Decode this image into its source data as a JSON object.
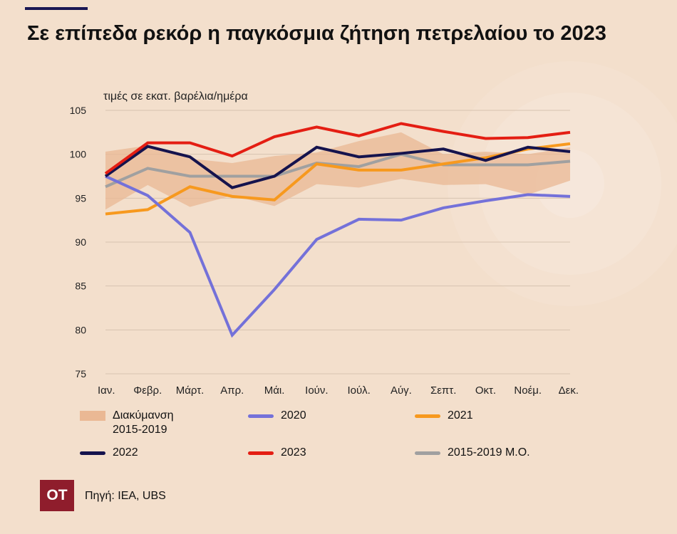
{
  "header": {
    "title": "Σε επίπεδα ρεκόρ η παγκόσμια ζήτηση πετρελαίου το 2023",
    "unit": "τιμές σε εκατ. βαρέλια/ημέρα"
  },
  "footer": {
    "logo": "OT",
    "source": "Πηγή: IEA, UBS"
  },
  "chart_data": {
    "type": "line",
    "title": "Σε επίπεδα ρεκόρ η παγκόσμια ζήτηση πετρελαίου το 2023",
    "ylabel": "τιμές σε εκατ. βαρέλια/ημέρα",
    "xlabel": "",
    "ylim": [
      75,
      105
    ],
    "yticks": [
      75,
      80,
      85,
      90,
      95,
      100,
      105
    ],
    "grid": true,
    "categories": [
      "Ιαν.",
      "Φεβρ.",
      "Μάρτ.",
      "Απρ.",
      "Μάι.",
      "Ιούν.",
      "Ιούλ.",
      "Αύγ.",
      "Σεπτ.",
      "Οκτ.",
      "Νοέμ.",
      "Δεκ."
    ],
    "band": {
      "name": "Διακύμανση 2015-2019",
      "color": "#eab894",
      "upper": [
        100.3,
        101.0,
        99.5,
        99.0,
        99.8,
        100.2,
        101.5,
        102.5,
        100.0,
        100.3,
        100.0,
        100.8
      ],
      "lower": [
        93.7,
        96.5,
        94.0,
        95.3,
        94.1,
        96.6,
        96.2,
        97.2,
        96.5,
        96.6,
        95.4,
        97.0
      ]
    },
    "series": [
      {
        "name": "2020",
        "color": "#7471d9",
        "values": [
          97.5,
          95.3,
          91.1,
          79.4,
          84.6,
          90.3,
          92.6,
          92.5,
          93.9,
          94.7,
          95.4,
          95.2
        ]
      },
      {
        "name": "2021",
        "color": "#f7991e",
        "values": [
          93.2,
          93.7,
          96.3,
          95.2,
          94.8,
          98.9,
          98.2,
          98.2,
          98.9,
          99.6,
          100.6,
          101.2
        ]
      },
      {
        "name": "2022",
        "color": "#15134d",
        "values": [
          97.5,
          100.9,
          99.7,
          96.2,
          97.5,
          100.8,
          99.7,
          100.1,
          100.6,
          99.3,
          100.8,
          100.3
        ]
      },
      {
        "name": "2023",
        "color": "#e41e13",
        "values": [
          97.8,
          101.3,
          101.3,
          99.8,
          102.0,
          103.1,
          102.1,
          103.5,
          102.6,
          101.8,
          101.9,
          102.5
        ]
      },
      {
        "name": "2015-2019 Μ.Ο.",
        "color": "#a0a0a0",
        "values": [
          96.3,
          98.4,
          97.5,
          97.5,
          97.5,
          99.0,
          98.6,
          100.0,
          98.8,
          98.8,
          98.8,
          99.2
        ]
      }
    ],
    "legend": [
      {
        "label": "Διακύμανση 2015-2019",
        "kind": "band",
        "color": "#eab894"
      },
      {
        "label": "2020",
        "kind": "line",
        "color": "#7471d9"
      },
      {
        "label": "2021",
        "kind": "line",
        "color": "#f7991e"
      },
      {
        "label": "2022",
        "kind": "line",
        "color": "#15134d"
      },
      {
        "label": "2023",
        "kind": "line",
        "color": "#e41e13"
      },
      {
        "label": "2015-2019 Μ.Ο.",
        "kind": "line",
        "color": "#a0a0a0"
      }
    ],
    "legend_position": "bottom"
  }
}
